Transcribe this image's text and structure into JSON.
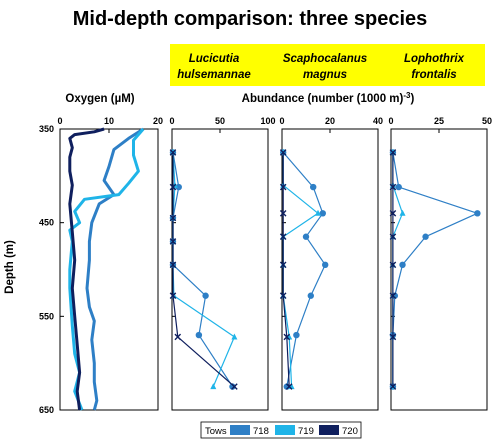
{
  "title": "Mid-depth comparison:  three species",
  "y_axis": {
    "label": "Depth (m)",
    "ticks": [
      "350",
      "450",
      "550",
      "650"
    ],
    "ylim": [
      350,
      650
    ],
    "inverted": true
  },
  "oxygen_panel": {
    "xlabel": "Oxygen (µM)",
    "ticks": [
      "0",
      "10",
      "20"
    ],
    "xlim": [
      0,
      20
    ]
  },
  "abundance_header": "Abundance (number (1000 m)",
  "abundance_header_sup": "-3",
  "abundance_header_close": ")",
  "species_banner_color": "#ffff00",
  "species_panels": [
    {
      "name_line1": "Lucicutia",
      "name_line2": "hulsemannae",
      "ticks": [
        "0",
        "50",
        "100"
      ],
      "xlim": [
        0,
        100
      ]
    },
    {
      "name_line1": "Scaphocalanus",
      "name_line2": "magnus",
      "ticks": [
        "0",
        "20",
        "40"
      ],
      "xlim": [
        0,
        40
      ]
    },
    {
      "name_line1": "Lophothrix",
      "name_line2": "frontalis",
      "ticks": [
        "0",
        "25",
        "50"
      ],
      "xlim": [
        0,
        50
      ]
    }
  ],
  "legend": {
    "title": "Tows",
    "entries": [
      {
        "label": "718",
        "color": "#2e7fc6"
      },
      {
        "label": "719",
        "color": "#1fb4e8"
      },
      {
        "label": "720",
        "color": "#0f1f5e"
      }
    ]
  },
  "chart_data": [
    {
      "type": "line",
      "title": "",
      "xlabel": "Oxygen (µM)",
      "ylabel": "Depth (m)",
      "xlim": [
        0,
        20
      ],
      "ylim": [
        650,
        350
      ],
      "series": [
        {
          "name": "718",
          "color": "#2e7fc6",
          "points": [
            [
              17,
              350
            ],
            [
              14,
              360
            ],
            [
              11,
              372
            ],
            [
              10,
              390
            ],
            [
              9,
              405
            ],
            [
              11,
              420
            ],
            [
              8,
              430
            ],
            [
              6.5,
              450
            ],
            [
              6,
              470
            ],
            [
              6,
              490
            ],
            [
              5.5,
              520
            ],
            [
              6,
              540
            ],
            [
              7,
              555
            ],
            [
              6.5,
              575
            ],
            [
              7,
              600
            ],
            [
              7,
              620
            ],
            [
              7.5,
              640
            ],
            [
              7,
              650
            ]
          ]
        },
        {
          "name": "719",
          "color": "#1fb4e8",
          "points": [
            [
              17,
              350
            ],
            [
              15,
              362
            ],
            [
              15,
              378
            ],
            [
              16,
              395
            ],
            [
              14,
              408
            ],
            [
              12,
              420
            ],
            [
              5,
              425
            ],
            [
              3,
              438
            ],
            [
              4,
              450
            ],
            [
              2,
              458
            ],
            [
              2.5,
              470
            ],
            [
              2,
              500
            ],
            [
              2,
              520
            ],
            [
              2.5,
              560
            ],
            [
              3,
              590
            ],
            [
              4,
              610
            ],
            [
              3,
              630
            ],
            [
              4.5,
              650
            ]
          ]
        },
        {
          "name": "720",
          "color": "#0f1f5e",
          "points": [
            [
              9,
              350
            ],
            [
              7,
              353
            ],
            [
              3,
              356
            ],
            [
              2,
              360
            ],
            [
              2.5,
              370
            ],
            [
              2,
              380
            ],
            [
              2,
              395
            ],
            [
              2.5,
              410
            ],
            [
              2,
              430
            ],
            [
              2.5,
              460
            ],
            [
              3,
              490
            ],
            [
              2.5,
              520
            ],
            [
              3,
              550
            ],
            [
              3.5,
              580
            ],
            [
              4,
              610
            ],
            [
              3.5,
              630
            ],
            [
              4,
              650
            ]
          ]
        }
      ]
    },
    {
      "type": "line",
      "title": "Lucicutia hulsemannae",
      "xlabel": "Abundance (number (1000 m)-3)",
      "ylabel": "Depth (m)",
      "xlim": [
        0,
        100
      ],
      "ylim": [
        650,
        350
      ],
      "series": [
        {
          "name": "718",
          "color": "#2e7fc6",
          "y": [
            375,
            412,
            445,
            470,
            495,
            528,
            570,
            625
          ],
          "x": [
            1,
            7,
            1,
            1,
            1,
            35,
            28,
            63
          ]
        },
        {
          "name": "719",
          "color": "#1fb4e8",
          "y": [
            375,
            410,
            445,
            470,
            495,
            528,
            572,
            625
          ],
          "x": [
            1,
            3,
            1,
            1,
            1,
            2,
            65,
            43
          ]
        },
        {
          "name": "720",
          "color": "#0f1f5e",
          "y": [
            375,
            412,
            445,
            470,
            495,
            528,
            572,
            625
          ],
          "x": [
            1,
            1,
            1,
            1,
            1,
            1,
            6,
            65
          ]
        }
      ]
    },
    {
      "type": "line",
      "title": "Scaphocalanus magnus",
      "xlabel": "Abundance (number (1000 m)-3)",
      "ylabel": "Depth (m)",
      "xlim": [
        0,
        40
      ],
      "ylim": [
        650,
        350
      ],
      "series": [
        {
          "name": "718",
          "color": "#2e7fc6",
          "y": [
            375,
            412,
            440,
            465,
            495,
            528,
            570,
            625
          ],
          "x": [
            0.5,
            13,
            17,
            10,
            18,
            12,
            6,
            2
          ]
        },
        {
          "name": "719",
          "color": "#1fb4e8",
          "y": [
            375,
            410,
            440,
            465,
            495,
            528,
            572,
            625
          ],
          "x": [
            0.5,
            0.5,
            15,
            0.5,
            0.5,
            0.5,
            3,
            4
          ]
        },
        {
          "name": "720",
          "color": "#0f1f5e",
          "y": [
            375,
            412,
            440,
            465,
            495,
            528,
            572,
            625
          ],
          "x": [
            0.5,
            0.5,
            0.5,
            0.5,
            0.5,
            0.5,
            2,
            3
          ]
        }
      ]
    },
    {
      "type": "line",
      "title": "Lophothrix frontalis",
      "xlabel": "Abundance (number (1000 m)-3)",
      "ylabel": "Depth (m)",
      "xlim": [
        0,
        50
      ],
      "ylim": [
        650,
        350
      ],
      "series": [
        {
          "name": "718",
          "color": "#2e7fc6",
          "y": [
            375,
            412,
            440,
            465,
            495,
            528,
            570,
            625
          ],
          "x": [
            1,
            4,
            45,
            18,
            6,
            2,
            1,
            1
          ]
        },
        {
          "name": "719",
          "color": "#1fb4e8",
          "y": [
            375,
            410,
            440,
            465,
            495,
            528,
            572,
            625
          ],
          "x": [
            1,
            1,
            6,
            1,
            1,
            1,
            1,
            1
          ]
        },
        {
          "name": "720",
          "color": "#0f1f5e",
          "y": [
            375,
            412,
            440,
            465,
            495,
            528,
            572,
            625
          ],
          "x": [
            1,
            1,
            1,
            1,
            1,
            1,
            1,
            1
          ]
        }
      ]
    }
  ]
}
